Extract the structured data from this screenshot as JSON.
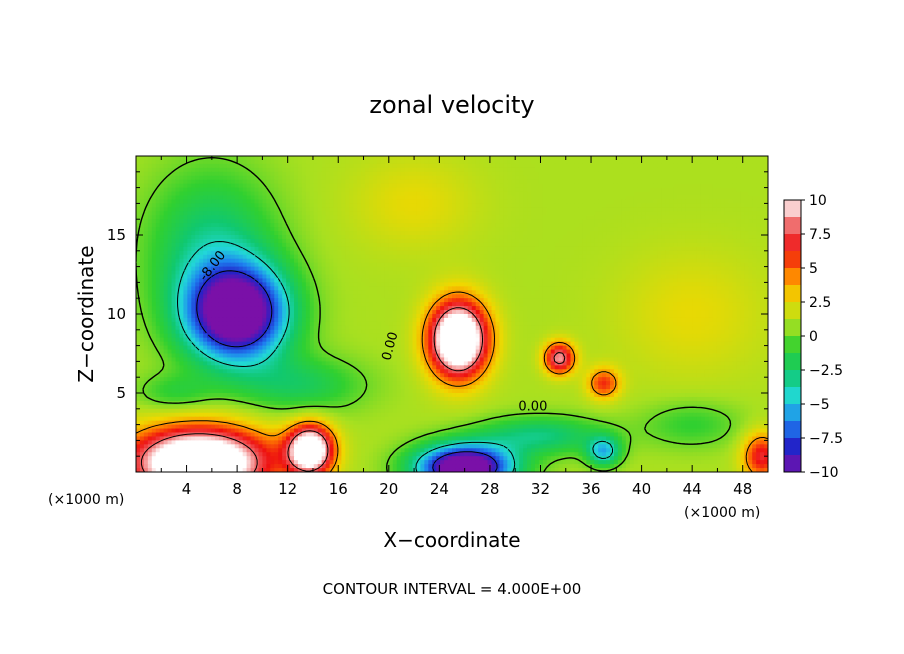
{
  "chart_data": {
    "type": "heatmap",
    "title": "zonal velocity",
    "xlabel": "X−coordinate",
    "ylabel": "Z−coordinate",
    "x_unit_left": "(×1000 m)",
    "x_unit_right": "(×1000 m)",
    "footer": "CONTOUR INTERVAL = 4.000E+00",
    "xlim": [
      0,
      50
    ],
    "ylim": [
      0,
      20
    ],
    "x_ticks": [
      "4",
      "8",
      "12",
      "16",
      "20",
      "24",
      "28",
      "32",
      "36",
      "40",
      "44",
      "48"
    ],
    "y_ticks": [
      "5",
      "10",
      "15"
    ],
    "colorbar_ticks": [
      "10",
      "7.5",
      "5",
      "2.5",
      "0",
      "−2.5",
      "−5",
      "−7.5",
      "−10"
    ],
    "colorbar_range": [
      -10,
      10
    ],
    "contour_labels": [
      {
        "text": "-8.00",
        "x": 6.3,
        "y": 12.9,
        "rotate": -52
      },
      {
        "text": "0.00",
        "x": 20.4,
        "y": 7.9,
        "rotate": -75
      },
      {
        "text": "0.00",
        "x": 31.4,
        "y": 3.9,
        "rotate": 0
      }
    ],
    "colormap": [
      "#7a10a8",
      "#2222c8",
      "#1e7ff0",
      "#22d8d8",
      "#10c870",
      "#30d030",
      "#a8e020",
      "#f0d800",
      "#ff8000",
      "#ee1010",
      "#f07070",
      "#ffffff"
    ],
    "background_value": 1.0,
    "features": [
      {
        "x": 8,
        "y": 10,
        "sx": 4.0,
        "sy": 3.0,
        "a": -13
      },
      {
        "x": 6,
        "y": 14,
        "sx": 5,
        "sy": 5,
        "a": -4
      },
      {
        "x": 13,
        "y": 5.5,
        "sx": 5,
        "sy": 1.8,
        "a": -3
      },
      {
        "x": 25.5,
        "y": 8.4,
        "sx": 2.3,
        "sy": 2.4,
        "a": 14
      },
      {
        "x": 33.5,
        "y": 7.2,
        "sx": 1.2,
        "sy": 1.0,
        "a": 8
      },
      {
        "x": 37,
        "y": 5.6,
        "sx": 1.3,
        "sy": 1.0,
        "a": 5
      },
      {
        "x": 5,
        "y": 0.6,
        "sx": 5.5,
        "sy": 2.2,
        "a": 14
      },
      {
        "x": 13.8,
        "y": 1.4,
        "sx": 1.8,
        "sy": 1.6,
        "a": 12
      },
      {
        "x": 26,
        "y": 0.3,
        "sx": 3.8,
        "sy": 1.4,
        "a": -14
      },
      {
        "x": 32,
        "y": 2.3,
        "sx": 5,
        "sy": 1.2,
        "a": -4
      },
      {
        "x": 37,
        "y": 1.3,
        "sx": 1.3,
        "sy": 0.9,
        "a": -6
      },
      {
        "x": 49.5,
        "y": 1.0,
        "sx": 1.5,
        "sy": 1.5,
        "a": 6
      },
      {
        "x": 22,
        "y": 17,
        "sx": 5,
        "sy": 3,
        "a": 1.5
      },
      {
        "x": 44,
        "y": 10,
        "sx": 6,
        "sy": 4,
        "a": 1.5
      },
      {
        "x": 3,
        "y": 5,
        "sx": 3,
        "sy": 1.2,
        "a": -2
      },
      {
        "x": 44,
        "y": 3,
        "sx": 4,
        "sy": 1.5,
        "a": -2
      }
    ]
  }
}
